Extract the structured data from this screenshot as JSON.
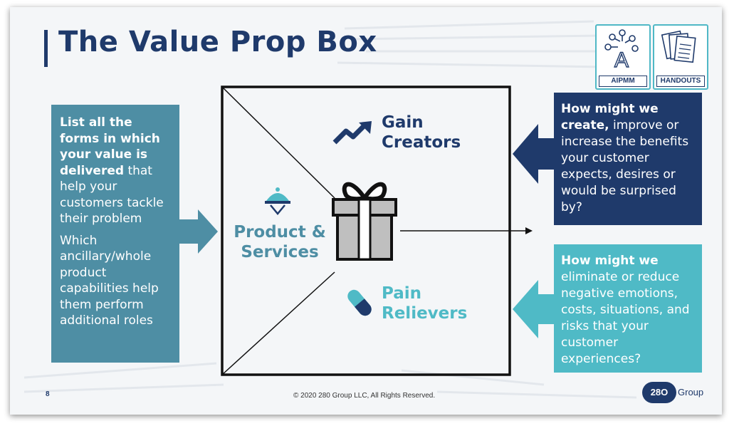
{
  "title": "The Value Prop Box",
  "badges": {
    "aipmm": "AIPMM",
    "handouts": "HANDOUTS"
  },
  "left_box": {
    "bold_text": "List all the forms in which your value is delivered",
    "rest_text": " that help your customers tackle their problem",
    "second_text": "Which ancillary/whole product capabilities help them perform additional roles"
  },
  "center": {
    "gain_creators": [
      "Gain",
      "Creators"
    ],
    "product_services": [
      "Product &",
      "Services"
    ],
    "pain_relievers": [
      "Pain",
      "Relievers"
    ]
  },
  "right_top": {
    "bold_1": "How might we",
    "bold_2": "create,",
    "rest": " improve or increase the benefits your customer expects, desires or would be surprised by?"
  },
  "right_bottom": {
    "bold": "How might we",
    "rest": "eliminate or reduce negative emotions, costs, situations, and risks that your customer experiences?"
  },
  "footer": {
    "page_number": "8",
    "copyright": "© 2020 280 Group LLC, All Rights Reserved.",
    "logo_mark": "28O",
    "logo_word": "Group"
  },
  "colors": {
    "navy": "#1f3a6b",
    "teal": "#4fbac6",
    "steel": "#4e8ea4"
  }
}
